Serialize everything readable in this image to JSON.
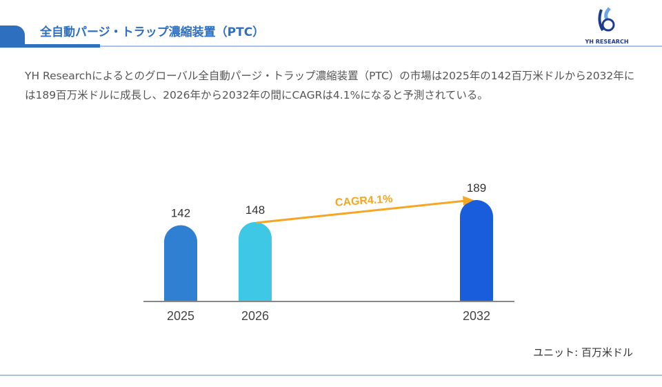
{
  "header": {
    "title": "全自動パージ・トラップ濃縮装置（PTC）",
    "logo_text": "YH RESEARCH"
  },
  "description": "YH Researchによるとのグローバル全自動パージ・トラップ濃縮装置（PTC）の市場は2025年の142百万米ドルから2032年には189百万米ドルに成長し、2026年から2032年の間にCAGRは4.1%になると予測されている。",
  "unit_label": "ユニット: 百万米ドル",
  "chart_data": {
    "type": "bar",
    "categories": [
      "2025",
      "2026",
      "2032"
    ],
    "values": [
      142,
      148,
      189
    ],
    "colors": [
      "#2f7fd2",
      "#3ec8e6",
      "#1a5ddc"
    ],
    "annotation": "CAGR4.1%",
    "annotation_color": "#f5a623",
    "ylim": [
      0,
      189
    ]
  }
}
